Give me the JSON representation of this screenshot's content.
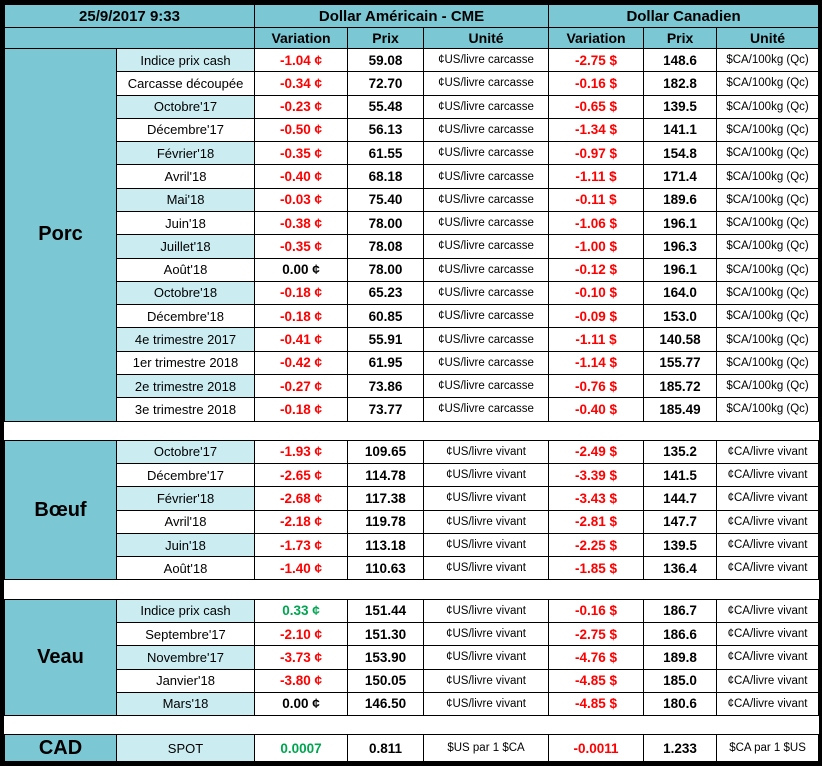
{
  "header": {
    "datetime": "25/9/2017 9:33",
    "us_title": "Dollar Américain - CME",
    "ca_title": "Dollar Canadien",
    "col_variation": "Variation",
    "col_prix": "Prix",
    "col_unite": "Unité"
  },
  "colors": {
    "header_bg": "#7BC8D4",
    "row_label_alt_bg": "#CBEDF2",
    "negative_text": "#FF0000",
    "positive_text": "#00A550",
    "border": "#000000"
  },
  "sections": [
    {
      "name": "Porc",
      "rows": [
        {
          "label": "Indice prix cash",
          "us_var": "-1.04 ¢",
          "us_prix": "59.08",
          "us_unit": "¢US/livre carcasse",
          "ca_var": "-2.75 $",
          "ca_prix": "148.6",
          "ca_unit": "$CA/100kg (Qc)"
        },
        {
          "label": "Carcasse découpée",
          "us_var": "-0.34 ¢",
          "us_prix": "72.70",
          "us_unit": "¢US/livre carcasse",
          "ca_var": "-0.16 $",
          "ca_prix": "182.8",
          "ca_unit": "$CA/100kg (Qc)"
        },
        {
          "label": "Octobre'17",
          "us_var": "-0.23 ¢",
          "us_prix": "55.48",
          "us_unit": "¢US/livre carcasse",
          "ca_var": "-0.65 $",
          "ca_prix": "139.5",
          "ca_unit": "$CA/100kg (Qc)"
        },
        {
          "label": "Décembre'17",
          "us_var": "-0.50 ¢",
          "us_prix": "56.13",
          "us_unit": "¢US/livre carcasse",
          "ca_var": "-1.34 $",
          "ca_prix": "141.1",
          "ca_unit": "$CA/100kg (Qc)"
        },
        {
          "label": "Février'18",
          "us_var": "-0.35 ¢",
          "us_prix": "61.55",
          "us_unit": "¢US/livre carcasse",
          "ca_var": "-0.97 $",
          "ca_prix": "154.8",
          "ca_unit": "$CA/100kg (Qc)"
        },
        {
          "label": "Avril'18",
          "us_var": "-0.40 ¢",
          "us_prix": "68.18",
          "us_unit": "¢US/livre carcasse",
          "ca_var": "-1.11 $",
          "ca_prix": "171.4",
          "ca_unit": "$CA/100kg (Qc)"
        },
        {
          "label": "Mai'18",
          "us_var": "-0.03 ¢",
          "us_prix": "75.40",
          "us_unit": "¢US/livre carcasse",
          "ca_var": "-0.11 $",
          "ca_prix": "189.6",
          "ca_unit": "$CA/100kg (Qc)"
        },
        {
          "label": "Juin'18",
          "us_var": "-0.38 ¢",
          "us_prix": "78.00",
          "us_unit": "¢US/livre carcasse",
          "ca_var": "-1.06 $",
          "ca_prix": "196.1",
          "ca_unit": "$CA/100kg (Qc)"
        },
        {
          "label": "Juillet'18",
          "us_var": "-0.35 ¢",
          "us_prix": "78.08",
          "us_unit": "¢US/livre carcasse",
          "ca_var": "-1.00 $",
          "ca_prix": "196.3",
          "ca_unit": "$CA/100kg (Qc)"
        },
        {
          "label": "Août'18",
          "us_var": "0.00 ¢",
          "us_prix": "78.00",
          "us_unit": "¢US/livre carcasse",
          "ca_var": "-0.12 $",
          "ca_prix": "196.1",
          "ca_unit": "$CA/100kg (Qc)"
        },
        {
          "label": "Octobre'18",
          "us_var": "-0.18 ¢",
          "us_prix": "65.23",
          "us_unit": "¢US/livre carcasse",
          "ca_var": "-0.10 $",
          "ca_prix": "164.0",
          "ca_unit": "$CA/100kg (Qc)"
        },
        {
          "label": "Décembre'18",
          "us_var": "-0.18 ¢",
          "us_prix": "60.85",
          "us_unit": "¢US/livre carcasse",
          "ca_var": "-0.09 $",
          "ca_prix": "153.0",
          "ca_unit": "$CA/100kg (Qc)"
        },
        {
          "label": "4e trimestre 2017",
          "us_var": "-0.41 ¢",
          "us_prix": "55.91",
          "us_unit": "¢US/livre carcasse",
          "ca_var": "-1.11 $",
          "ca_prix": "140.58",
          "ca_unit": "$CA/100kg (Qc)"
        },
        {
          "label": "1er trimestre 2018",
          "us_var": "-0.42 ¢",
          "us_prix": "61.95",
          "us_unit": "¢US/livre carcasse",
          "ca_var": "-1.14 $",
          "ca_prix": "155.77",
          "ca_unit": "$CA/100kg (Qc)"
        },
        {
          "label": "2e trimestre 2018",
          "us_var": "-0.27 ¢",
          "us_prix": "73.86",
          "us_unit": "¢US/livre carcasse",
          "ca_var": "-0.76 $",
          "ca_prix": "185.72",
          "ca_unit": "$CA/100kg (Qc)"
        },
        {
          "label": "3e trimestre 2018",
          "us_var": "-0.18 ¢",
          "us_prix": "73.77",
          "us_unit": "¢US/livre carcasse",
          "ca_var": "-0.40 $",
          "ca_prix": "185.49",
          "ca_unit": "$CA/100kg (Qc)"
        }
      ]
    },
    {
      "name": "Bœuf",
      "rows": [
        {
          "label": "Octobre'17",
          "us_var": "-1.93 ¢",
          "us_prix": "109.65",
          "us_unit": "¢US/livre vivant",
          "ca_var": "-2.49 $",
          "ca_prix": "135.2",
          "ca_unit": "¢CA/livre vivant"
        },
        {
          "label": "Décembre'17",
          "us_var": "-2.65 ¢",
          "us_prix": "114.78",
          "us_unit": "¢US/livre vivant",
          "ca_var": "-3.39 $",
          "ca_prix": "141.5",
          "ca_unit": "¢CA/livre vivant"
        },
        {
          "label": "Février'18",
          "us_var": "-2.68 ¢",
          "us_prix": "117.38",
          "us_unit": "¢US/livre vivant",
          "ca_var": "-3.43 $",
          "ca_prix": "144.7",
          "ca_unit": "¢CA/livre vivant"
        },
        {
          "label": "Avril'18",
          "us_var": "-2.18 ¢",
          "us_prix": "119.78",
          "us_unit": "¢US/livre vivant",
          "ca_var": "-2.81 $",
          "ca_prix": "147.7",
          "ca_unit": "¢CA/livre vivant"
        },
        {
          "label": "Juin'18",
          "us_var": "-1.73 ¢",
          "us_prix": "113.18",
          "us_unit": "¢US/livre vivant",
          "ca_var": "-2.25 $",
          "ca_prix": "139.5",
          "ca_unit": "¢CA/livre vivant"
        },
        {
          "label": "Août'18",
          "us_var": "-1.40 ¢",
          "us_prix": "110.63",
          "us_unit": "¢US/livre vivant",
          "ca_var": "-1.85 $",
          "ca_prix": "136.4",
          "ca_unit": "¢CA/livre vivant"
        }
      ]
    },
    {
      "name": "Veau",
      "rows": [
        {
          "label": "Indice prix cash",
          "us_var": "0.33 ¢",
          "us_prix": "151.44",
          "us_unit": "¢US/livre vivant",
          "ca_var": "-0.16 $",
          "ca_prix": "186.7",
          "ca_unit": "¢CA/livre vivant"
        },
        {
          "label": "Septembre'17",
          "us_var": "-2.10 ¢",
          "us_prix": "151.30",
          "us_unit": "¢US/livre vivant",
          "ca_var": "-2.75 $",
          "ca_prix": "186.6",
          "ca_unit": "¢CA/livre vivant"
        },
        {
          "label": "Novembre'17",
          "us_var": "-3.73 ¢",
          "us_prix": "153.90",
          "us_unit": "¢US/livre vivant",
          "ca_var": "-4.76 $",
          "ca_prix": "189.8",
          "ca_unit": "¢CA/livre vivant"
        },
        {
          "label": "Janvier'18",
          "us_var": "-3.80 ¢",
          "us_prix": "150.05",
          "us_unit": "¢US/livre vivant",
          "ca_var": "-4.85 $",
          "ca_prix": "185.0",
          "ca_unit": "¢CA/livre vivant"
        },
        {
          "label": "Mars'18",
          "us_var": "0.00 ¢",
          "us_prix": "146.50",
          "us_unit": "¢US/livre vivant",
          "ca_var": "-4.85 $",
          "ca_prix": "180.6",
          "ca_unit": "¢CA/livre vivant"
        }
      ]
    },
    {
      "name": "CAD",
      "rows": [
        {
          "label": "SPOT",
          "us_var": "0.0007",
          "us_prix": "0.811",
          "us_unit": "$US par 1 $CA",
          "ca_var": "-0.0011",
          "ca_prix": "1.233",
          "ca_unit": "$CA par 1 $US"
        }
      ]
    }
  ]
}
